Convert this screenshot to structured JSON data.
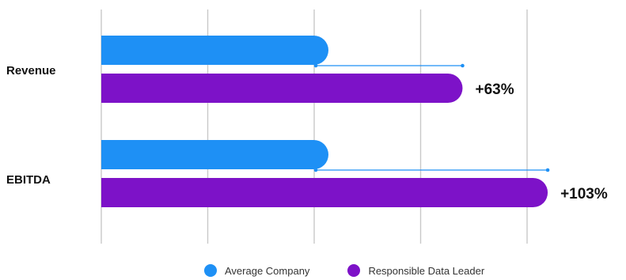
{
  "chart_data": {
    "type": "bar",
    "orientation": "horizontal",
    "categories": [
      "Revenue",
      "EBITDA"
    ],
    "series": [
      {
        "name": "Average Company",
        "values": [
          100,
          100
        ],
        "color": "#1e90f5"
      },
      {
        "name": "Responsible Data Leader",
        "values": [
          163,
          203
        ],
        "color": "#7d12c8"
      }
    ],
    "annotations": [
      "+63%",
      "+103%"
    ],
    "xlim": [
      0,
      200
    ],
    "grid": true,
    "legend": {
      "position": "bottom",
      "items": [
        "Average Company",
        "Responsible Data Leader"
      ]
    }
  }
}
